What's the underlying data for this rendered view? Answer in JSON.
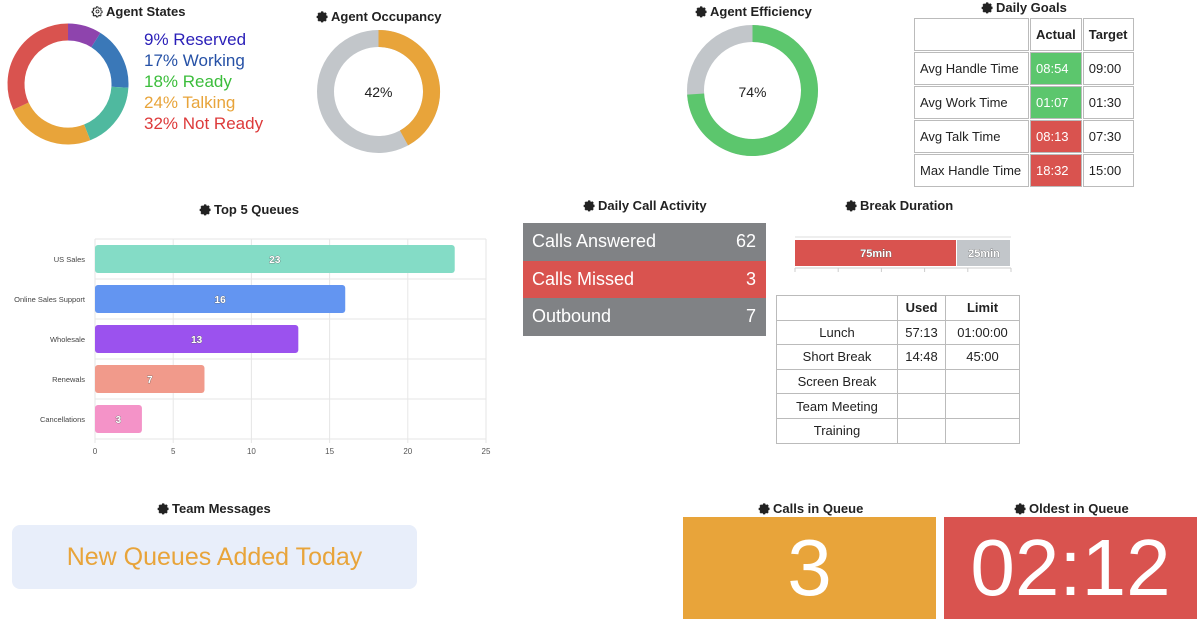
{
  "agent_states": {
    "title": "Agent States",
    "legend": [
      {
        "label": "9% Reserved",
        "color": "#2a1fb8"
      },
      {
        "label": "17% Working",
        "color": "#2651a6"
      },
      {
        "label": "18% Ready",
        "color": "#3bbd3b"
      },
      {
        "label": "24% Talking",
        "color": "#e8a43a"
      },
      {
        "label": "32% Not Ready",
        "color": "#dd3a3a"
      }
    ],
    "segments": [
      {
        "name": "Reserved",
        "value": 9,
        "color": "#8e44ad"
      },
      {
        "name": "Working",
        "value": 17,
        "color": "#3a78b8"
      },
      {
        "name": "Ready",
        "value": 18,
        "color": "#4fb99f"
      },
      {
        "name": "Talking",
        "value": 24,
        "color": "#e8a43a"
      },
      {
        "name": "Not Ready",
        "value": 32,
        "color": "#d9534f"
      }
    ]
  },
  "agent_occupancy": {
    "title": "Agent Occupancy",
    "label": "42%",
    "value": 42,
    "color": "#e8a43a",
    "track": "#c2c6ca"
  },
  "agent_efficiency": {
    "title": "Agent Efficiency",
    "label": "74%",
    "value": 74,
    "color": "#5cc66d",
    "track": "#c2c6ca"
  },
  "daily_goals": {
    "title": "Daily Goals",
    "headers": {
      "actual": "Actual",
      "target": "Target"
    },
    "rows": [
      {
        "label": "Avg Handle Time",
        "actual": "08:54",
        "target": "09:00",
        "color": "#5cc66d"
      },
      {
        "label": "Avg Work Time",
        "actual": "01:07",
        "target": "01:30",
        "color": "#5cc66d"
      },
      {
        "label": "Avg Talk Time",
        "actual": "08:13",
        "target": "07:30",
        "color": "#d9534f"
      },
      {
        "label": "Max Handle Time",
        "actual": "18:32",
        "target": "15:00",
        "color": "#d9534f"
      }
    ]
  },
  "top_queues": {
    "title": "Top 5 Queues",
    "chart_data": {
      "type": "bar",
      "orientation": "horizontal",
      "categories": [
        "US Sales",
        "Online Sales Support",
        "Wholesale",
        "Renewals",
        "Cancellations"
      ],
      "values": [
        23,
        16,
        13,
        7,
        3
      ],
      "value_labels": [
        "23",
        "16",
        "13",
        "7",
        "3"
      ],
      "colors": [
        "#84dcc6",
        "#6395f1",
        "#9b52ee",
        "#f19a8b",
        "#f493c8"
      ],
      "xlim": [
        0,
        25
      ],
      "ticks": [
        "0",
        "5",
        "10",
        "15",
        "20",
        "25"
      ],
      "grid": true
    }
  },
  "daily_call_activity": {
    "title": "Daily Call Activity",
    "rows": [
      {
        "label": "Calls Answered",
        "value": "62",
        "color": "#808285"
      },
      {
        "label": "Calls Missed",
        "value": "3",
        "color": "#d9534f"
      },
      {
        "label": "Outbound",
        "value": "7",
        "color": "#808285"
      }
    ]
  },
  "break_duration": {
    "title": "Break Duration",
    "bar": [
      {
        "label": "75min",
        "value": 75,
        "color": "#d9534f"
      },
      {
        "label": "25min",
        "value": 25,
        "color": "#c2c6ca"
      }
    ],
    "headers": {
      "used": "Used",
      "limit": "Limit"
    },
    "rows": [
      {
        "label": "Lunch",
        "used": "57:13",
        "limit": "01:00:00"
      },
      {
        "label": "Short Break",
        "used": "14:48",
        "limit": "45:00"
      },
      {
        "label": "Screen Break",
        "used": "",
        "limit": ""
      },
      {
        "label": "Team Meeting",
        "used": "",
        "limit": ""
      },
      {
        "label": "Training",
        "used": "",
        "limit": ""
      }
    ]
  },
  "team_messages": {
    "title": "Team Messages",
    "message": "New Queues Added Today",
    "bg": "#e8eefa",
    "color": "#e8a43a"
  },
  "calls_in_queue": {
    "title": "Calls in Queue",
    "value": "3",
    "color": "#e8a43a"
  },
  "oldest_in_queue": {
    "title": "Oldest in Queue",
    "value": "02:12",
    "color": "#d9534f"
  }
}
